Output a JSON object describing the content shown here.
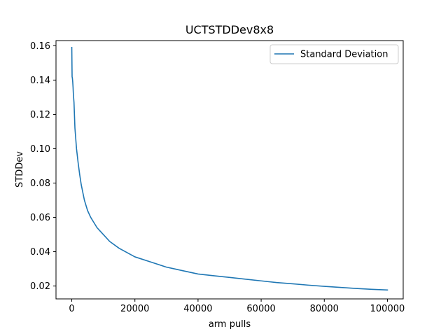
{
  "chart_data": {
    "type": "line",
    "title": "UCTSTDDev8x8",
    "xlabel": "arm pulls",
    "ylabel": "STDDev",
    "xlim": [
      -5000,
      105000
    ],
    "ylim": [
      0.0125,
      0.163
    ],
    "xticks": [
      0,
      20000,
      40000,
      60000,
      80000,
      100000
    ],
    "xtick_labels": [
      "0",
      "20000",
      "40000",
      "60000",
      "80000",
      "100000"
    ],
    "yticks": [
      0.02,
      0.04,
      0.06,
      0.08,
      0.1,
      0.12,
      0.14,
      0.16
    ],
    "ytick_labels": [
      "0.02",
      "0.04",
      "0.06",
      "0.08",
      "0.10",
      "0.12",
      "0.14",
      "0.16"
    ],
    "grid": false,
    "legend_position": "top-right",
    "series": [
      {
        "name": "Standard Deviation",
        "color": "#1f77b4",
        "x": [
          1,
          100,
          200,
          300,
          400,
          500,
          700,
          1000,
          1500,
          2000,
          2500,
          3000,
          4000,
          5000,
          6000,
          7000,
          8000,
          9000,
          10000,
          12000,
          15000,
          20000,
          25000,
          30000,
          35000,
          40000,
          45000,
          50000,
          55000,
          60000,
          65000,
          70000,
          75000,
          80000,
          85000,
          90000,
          95000,
          100000
        ],
        "y": [
          0.159,
          0.142,
          0.141,
          0.139,
          0.136,
          0.132,
          0.127,
          0.112,
          0.1,
          0.092,
          0.085,
          0.079,
          0.07,
          0.064,
          0.06,
          0.057,
          0.054,
          0.052,
          0.05,
          0.046,
          0.042,
          0.037,
          0.034,
          0.031,
          0.029,
          0.027,
          0.026,
          0.025,
          0.024,
          0.023,
          0.022,
          0.0213,
          0.0205,
          0.0198,
          0.0192,
          0.0186,
          0.0181,
          0.0177
        ]
      }
    ]
  }
}
